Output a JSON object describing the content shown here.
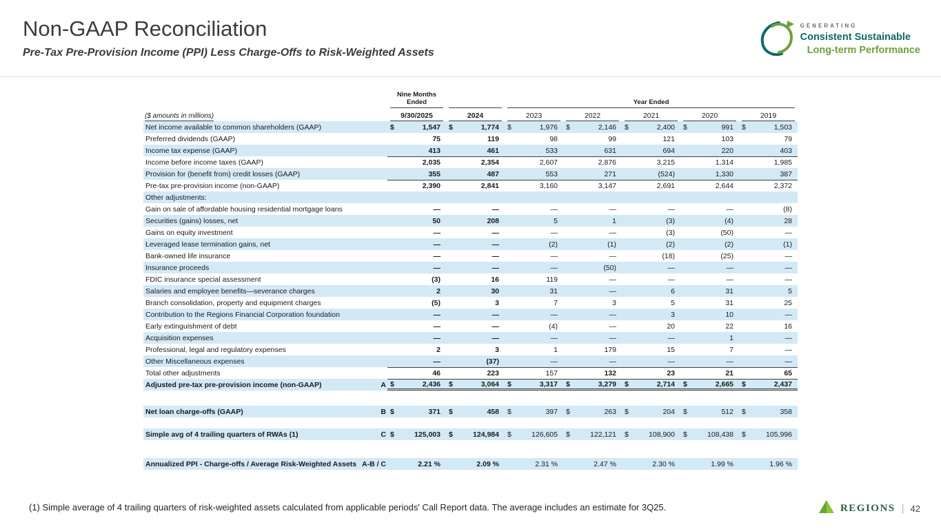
{
  "header": {
    "title": "Non-GAAP Reconciliation",
    "subtitle": "Pre-Tax Pre-Provision Income (PPI) Less Charge-Offs to Risk-Weighted Assets"
  },
  "tagline": {
    "line1": "GENERATING",
    "line2": "Consistent Sustainable",
    "line3": "Long-term Performance"
  },
  "colors": {
    "row_shade": "#d3e9f6",
    "brand_teal": "#0e6a66",
    "brand_green": "#6f9f3c",
    "regions_logo_green": "#8cc63e",
    "wordmark_green": "#2f5d45"
  },
  "table": {
    "units_label": "($ amounts in millions)",
    "group_nine_months": "Nine Months Ended",
    "group_year_ended": "Year Ended",
    "columns": [
      "9/30/2025",
      "2024",
      "2023",
      "2022",
      "2021",
      "2020",
      "2019"
    ],
    "rows": [
      {
        "label": "Net income available to common shareholders (GAAP)",
        "dollar": true,
        "shaded": true,
        "values": [
          "1,547",
          "1,774",
          "1,976",
          "2,146",
          "2,400",
          "991",
          "1,503"
        ]
      },
      {
        "label": "Preferred dividends (GAAP)",
        "values": [
          "75",
          "119",
          "98",
          "99",
          "121",
          "103",
          "79"
        ]
      },
      {
        "label": "Income tax expense (GAAP)",
        "shaded": true,
        "values": [
          "413",
          "461",
          "533",
          "631",
          "694",
          "220",
          "403"
        ]
      },
      {
        "label": "Income before income taxes (GAAP)",
        "rule_above": true,
        "values": [
          "2,035",
          "2,354",
          "2,607",
          "2,876",
          "3,215",
          "1,314",
          "1,985"
        ]
      },
      {
        "label": "Provision for (benefit from) credit losses (GAAP)",
        "shaded": true,
        "values": [
          "355",
          "487",
          "553",
          "271",
          "(524)",
          "1,330",
          "387"
        ]
      },
      {
        "label": "Pre-tax pre-provision income (non-GAAP)",
        "rule_above": true,
        "values": [
          "2,390",
          "2,841",
          "3,160",
          "3,147",
          "2,691",
          "2,644",
          "2,372"
        ]
      },
      {
        "label": "Other adjustments:",
        "shaded": true,
        "section": true,
        "values": []
      },
      {
        "label": "Gain on sale of affordable housing residential mortgage loans",
        "values": [
          "—",
          "—",
          "—",
          "—",
          "—",
          "—",
          "(8)"
        ]
      },
      {
        "label": "Securities (gains) losses, net",
        "shaded": true,
        "values": [
          "50",
          "208",
          "5",
          "1",
          "(3)",
          "(4)",
          "28"
        ]
      },
      {
        "label": "Gains on equity investment",
        "values": [
          "—",
          "—",
          "—",
          "—",
          "(3)",
          "(50)",
          "—"
        ]
      },
      {
        "label": "Leveraged lease termination gains, net",
        "shaded": true,
        "values": [
          "—",
          "—",
          "(2)",
          "(1)",
          "(2)",
          "(2)",
          "(1)"
        ]
      },
      {
        "label": "Bank-owned life insurance",
        "values": [
          "—",
          "—",
          "—",
          "—",
          "(18)",
          "(25)",
          "—"
        ]
      },
      {
        "label": "Insurance proceeds",
        "shaded": true,
        "values": [
          "—",
          "—",
          "—",
          "(50)",
          "—",
          "—",
          "—"
        ]
      },
      {
        "label": "FDIC insurance special assessment",
        "values": [
          "(3)",
          "16",
          "119",
          "—",
          "—",
          "—",
          "—"
        ]
      },
      {
        "label": "Salaries and employee benefits—severance charges",
        "shaded": true,
        "values": [
          "2",
          "30",
          "31",
          "—",
          "6",
          "31",
          "5"
        ]
      },
      {
        "label": "Branch consolidation, property and equipment charges",
        "values": [
          "(5)",
          "3",
          "7",
          "3",
          "5",
          "31",
          "25"
        ]
      },
      {
        "label": "Contribution to the Regions Financial Corporation foundation",
        "shaded": true,
        "values": [
          "—",
          "—",
          "—",
          "—",
          "3",
          "10",
          "—"
        ]
      },
      {
        "label": "Early extinguishment of debt",
        "values": [
          "—",
          "—",
          "(4)",
          "—",
          "20",
          "22",
          "16"
        ]
      },
      {
        "label": "Acquisition expenses",
        "shaded": true,
        "values": [
          "—",
          "—",
          "—",
          "—",
          "—",
          "1",
          "—"
        ]
      },
      {
        "label": "Professional, legal and regulatory expenses",
        "values": [
          "2",
          "3",
          "1",
          "179",
          "15",
          "7",
          "—"
        ]
      },
      {
        "label": "Other Miscellaneous expenses",
        "shaded": true,
        "values": [
          "—",
          "(37)",
          "—",
          "—",
          "—",
          "—",
          "—"
        ]
      },
      {
        "label": "Total other adjustments",
        "rule_above": true,
        "bold_cols": [
          3,
          4,
          5,
          6
        ],
        "values": [
          "46",
          "223",
          "157",
          "132",
          "23",
          "21",
          "65"
        ]
      },
      {
        "label": "Adjusted pre-tax pre-provision income (non-GAAP)",
        "letter": "A",
        "dollar": true,
        "shaded": true,
        "bold_label": true,
        "bold_all": true,
        "rule_above": true,
        "double_below": true,
        "values": [
          "2,436",
          "3,064",
          "3,317",
          "3,279",
          "2,714",
          "2,665",
          "2,437"
        ]
      },
      {
        "spacer": 22
      },
      {
        "label": "Net loan charge-offs (GAAP)",
        "letter": "B",
        "dollar": true,
        "shaded": true,
        "bold_label": true,
        "values": [
          "371",
          "458",
          "397",
          "263",
          "204",
          "512",
          "358"
        ]
      },
      {
        "spacer": 16
      },
      {
        "label": "Simple avg of 4 trailing quarters of RWAs (1)",
        "letter": "C",
        "dollar": true,
        "shaded": true,
        "bold_label": true,
        "values": [
          "125,003",
          "124,984",
          "126,605",
          "122,121",
          "108,900",
          "108,438",
          "105,996"
        ]
      },
      {
        "spacer": 26
      },
      {
        "label": "Annualized PPI - Charge-offs / Average Risk-Weighted Assets",
        "letter": "A-B / C",
        "shaded": true,
        "bold_label": true,
        "values": [
          "2.21 %",
          "2.09 %",
          "2.31 %",
          "2.47 %",
          "2.30 %",
          "1.99 %",
          "1.96 %"
        ]
      }
    ]
  },
  "footnote": "(1) Simple average of 4 trailing quarters of risk-weighted assets calculated from applicable periods' Call Report data. The average includes an estimate for 3Q25.",
  "footer": {
    "brand": "REGIONS",
    "separator": "|",
    "page": "42"
  }
}
